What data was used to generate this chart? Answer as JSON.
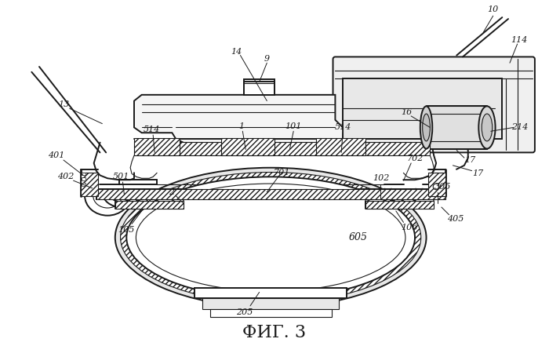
{
  "title": "ФИГ. 3",
  "title_fontsize": 16,
  "background_color": "#ffffff",
  "line_color": "#1a1a1a",
  "figsize": [
    7.0,
    4.41
  ],
  "dpi": 100,
  "gray_light": "#d8d8d8",
  "gray_mid": "#b0b0b0",
  "hatch_gray": "#888888"
}
